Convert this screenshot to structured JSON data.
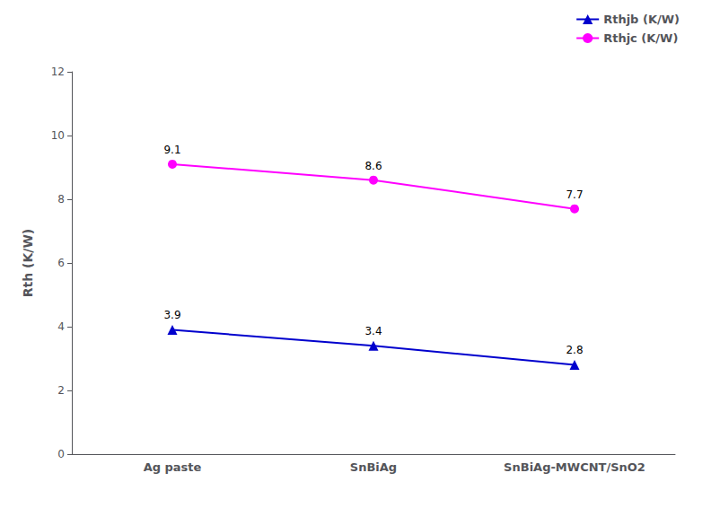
{
  "chart_data": {
    "type": "line",
    "categories": [
      "Ag paste",
      "SnBiAg",
      "SnBiAg-MWCNT/SnO2"
    ],
    "series": [
      {
        "name": "Rthjb (K/W)",
        "color": "#0000CD",
        "marker": "triangle",
        "values": [
          3.9,
          3.4,
          2.8
        ]
      },
      {
        "name": "Rthjc (K/W)",
        "color": "#FF00FF",
        "marker": "circle",
        "values": [
          9.1,
          8.6,
          7.7
        ]
      }
    ],
    "ylabel": "Rth (K/W)",
    "ylim": [
      0,
      12
    ],
    "yticks": [
      0,
      2,
      4,
      6,
      8,
      10,
      12
    ],
    "grid": false,
    "legend": "upper right",
    "data_labels": true
  }
}
